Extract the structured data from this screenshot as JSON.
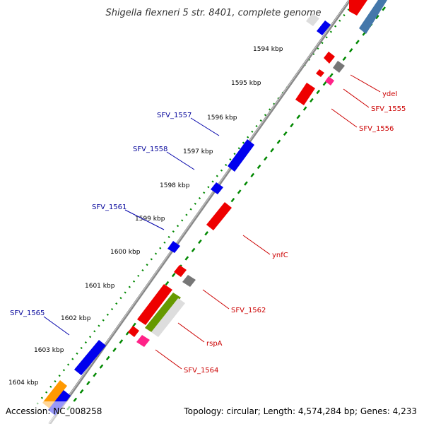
{
  "title": "Shigella flexneri 5 str. 8401, complete genome",
  "footer": {
    "accession": "Accession: NC_008258",
    "summary": "Topology: circular; Length: 4,574,284 bp; Genes: 4,233"
  },
  "ticks": [
    "1594 kbp",
    "1595 kbp",
    "1596 kbp",
    "1597 kbp",
    "1598 kbp",
    "1599 kbp",
    "1600 kbp",
    "1601 kbp",
    "1602 kbp",
    "1603 kbp",
    "1604 kbp"
  ],
  "labels_left": [
    "SFV_1557",
    "SFV_1558",
    "SFV_1561",
    "SFV_1565"
  ],
  "labels_right": [
    "ydeI",
    "SFV_1555",
    "SFV_1556",
    "ynfC",
    "SFV_1562",
    "rspA",
    "SFV_1564"
  ],
  "colors": {
    "forward_gene": "#0000ee",
    "reverse_gene": "#ee0000",
    "left_label": "#000099",
    "right_label": "#cc0000",
    "backbone": "#777777",
    "tick_dots": "#008800",
    "grey_gene": "#777777",
    "pink_gene": "#ff2288",
    "orange_gene": "#ff9900",
    "olive_gene": "#669900",
    "steel_gene": "#4477aa",
    "pale_gene": "#dddddd"
  }
}
